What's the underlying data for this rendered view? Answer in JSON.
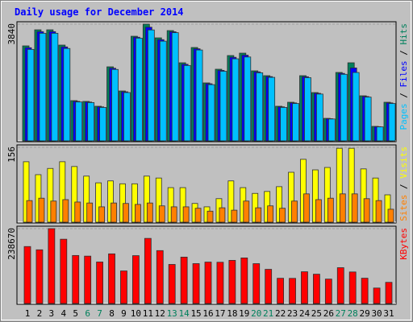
{
  "chart_data": {
    "type": "bar",
    "title": "Daily usage for December 2014",
    "categories": [
      "1",
      "2",
      "3",
      "4",
      "5",
      "6",
      "7",
      "8",
      "9",
      "10",
      "11",
      "12",
      "13",
      "14",
      "15",
      "16",
      "17",
      "18",
      "19",
      "20",
      "21",
      "22",
      "23",
      "24",
      "25",
      "26",
      "27",
      "28",
      "29",
      "30",
      "31"
    ],
    "category_colors": [
      "#000000",
      "#000000",
      "#000000",
      "#000000",
      "#000000",
      "#00805c",
      "#00805c",
      "#000000",
      "#000000",
      "#000000",
      "#000000",
      "#000000",
      "#00805c",
      "#00805c",
      "#000000",
      "#000000",
      "#000000",
      "#000000",
      "#000000",
      "#00805c",
      "#00805c",
      "#000000",
      "#000000",
      "#000000",
      "#000000",
      "#000000",
      "#00805c",
      "#00805c",
      "#000000",
      "#000000",
      "#000000"
    ],
    "legend_separator": " / ",
    "panels": [
      {
        "ylim": [
          0,
          3840
        ],
        "yticks": [
          3840
        ],
        "grid": true,
        "series": [
          {
            "name": "Hits",
            "color": "#00805c",
            "values": [
              3125,
              3654,
              3654,
              3151,
              1324,
              1298,
              1139,
              2436,
              1642,
              3442,
              3840,
              3389,
              3628,
              2569,
              3072,
              1907,
              2357,
              2807,
              2886,
              2304,
              2145,
              1139,
              1271,
              2145,
              1589,
              741,
              2251,
              2569,
              1483,
              477,
              1271
            ]
          },
          {
            "name": "Files",
            "color": "#0000ff",
            "values": [
              3065,
              3594,
              3594,
              3091,
              1300,
              1278,
              1119,
              2390,
              1615,
              3410,
              3740,
              3330,
              3590,
              2520,
              3030,
              1880,
              2320,
              2750,
              2820,
              2270,
              2115,
              1120,
              1250,
              2110,
              1565,
              730,
              2220,
              2400,
              1460,
              468,
              1250
            ]
          },
          {
            "name": "Pages",
            "color": "#00c0ff",
            "values": [
              3010,
              3540,
              3540,
              3040,
              1280,
              1260,
              1100,
              2350,
              1590,
              3380,
              3650,
              3280,
              3560,
              2480,
              2990,
              1850,
              2290,
              2700,
              2760,
              2240,
              2090,
              1100,
              1230,
              2080,
              1540,
              720,
              2190,
              2250,
              1440,
              460,
              1230
            ]
          }
        ]
      },
      {
        "ylim": [
          0,
          156
        ],
        "yticks": [
          156
        ],
        "grid": true,
        "series": [
          {
            "name": "Visits",
            "color": "#ffff00",
            "values": [
              126,
              99,
              112,
              126,
              116,
              96,
              82,
              86,
              80,
              80,
              96,
              92,
              72,
              72,
              39,
              32,
              49,
              86,
              72,
              60,
              64,
              74,
              104,
              131,
              109,
              114,
              154,
              154,
              111,
              92,
              57
            ]
          },
          {
            "name": "Sites",
            "color": "#ff8000",
            "values": [
              45,
              50,
              44,
              47,
              42,
              40,
              32,
              40,
              39,
              37,
              40,
              34,
              32,
              32,
              29,
              23,
              30,
              25,
              44,
              30,
              34,
              29,
              44,
              59,
              47,
              50,
              59,
              59,
              49,
              45,
              27
            ]
          }
        ]
      },
      {
        "ylim": [
          0,
          238670
        ],
        "yticks": [
          238670
        ],
        "grid": true,
        "series": [
          {
            "name": "KBytes",
            "color": "#ff0000",
            "values": [
              181580,
              171200,
              238670,
              204920,
              153050,
              151000,
              132290,
              158230,
              103760,
              152500,
              207520,
              168610,
              124510,
              147860,
              127110,
              132000,
              131500,
              137480,
              145260,
              127000,
              108950,
              80410,
              80100,
              101170,
              93380,
              77820,
              114140,
              100500,
              80600,
              49290,
              67440
            ]
          }
        ]
      }
    ]
  }
}
